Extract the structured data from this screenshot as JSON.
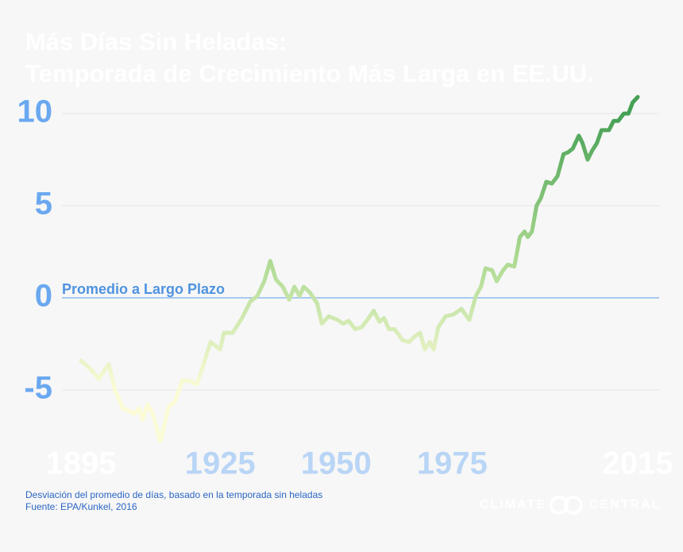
{
  "chart_data": {
    "type": "line",
    "title": [
      "Más Días Sin Heladas:",
      "Temporada de Crecimiento Más Larga en EE.UU."
    ],
    "annotation": "Promedio a Largo Plazo",
    "notes": [
      "Desviación del promedio de días, basado en la temporada sin heladas",
      "Fuente: EPA/Kunkel, 2016"
    ],
    "logo": [
      "CLIMATE",
      "CENTRAL"
    ],
    "x": [
      1895,
      1897.2,
      1898.8,
      1901,
      1902.3,
      1904,
      1905.2,
      1906.5,
      1907.5,
      1908.3,
      1909.3,
      1910.5,
      1912.1,
      1913.9,
      1915.3,
      1916.8,
      1918.5,
      1920,
      1921.3,
      1922.9,
      1925,
      1925.8,
      1927.7,
      1929.7,
      1931.5,
      1933,
      1934.5,
      1935.8,
      1937,
      1938.5,
      1939.9,
      1941,
      1942.1,
      1943,
      1944.3,
      1945.9,
      1946.9,
      1948.4,
      1950.3,
      1951.5,
      1952.7,
      1954.1,
      1955.5,
      1956.7,
      1958.1,
      1959.3,
      1960.3,
      1961.4,
      1962.6,
      1964.3,
      1965.7,
      1966.9,
      1968.1,
      1969.1,
      1970.2,
      1971,
      1972,
      1973.6,
      1975.3,
      1977,
      1978.7,
      1980.1,
      1981.2,
      1982.2,
      1983.6,
      1984.6,
      1986,
      1987,
      1988.4,
      1989.6,
      1990.6,
      1991.3,
      1992.2,
      1993.2,
      1994.1,
      1995.3,
      1996.5,
      1997.7,
      1999,
      2000,
      2001,
      2002.3,
      2003.1,
      2004.2,
      2005.2,
      2006.2,
      2007.2,
      2008.8,
      2009.8,
      2010.8,
      2012,
      2013,
      2013.9,
      2015
    ],
    "series": [
      {
        "values": [
          -3.4,
          -3.9,
          -4.4,
          -3.6,
          -5.0,
          -6.0,
          -6.1,
          -6.3,
          -6.0,
          -6.6,
          -5.8,
          -6.3,
          -7.8,
          -5.9,
          -5.6,
          -4.5,
          -4.5,
          -4.7,
          -3.7,
          -2.4,
          -2.8,
          -1.9,
          -1.9,
          -1.1,
          -0.2,
          0.1,
          0.9,
          2.0,
          1.0,
          0.6,
          -0.1,
          0.6,
          0.1,
          0.6,
          0.3,
          -0.3,
          -1.4,
          -1.0,
          -1.2,
          -1.4,
          -1.25,
          -1.7,
          -1.6,
          -1.2,
          -0.7,
          -1.3,
          -1.1,
          -1.7,
          -1.7,
          -2.3,
          -2.4,
          -2.1,
          -1.9,
          -2.8,
          -2.4,
          -2.8,
          -1.6,
          -1.0,
          -0.9,
          -0.6,
          -1.2,
          0.1,
          0.6,
          1.6,
          1.5,
          0.9,
          1.5,
          1.8,
          1.7,
          3.3,
          3.6,
          3.3,
          3.6,
          5.0,
          5.4,
          6.3,
          6.2,
          6.6,
          7.8,
          7.9,
          8.1,
          8.8,
          8.4,
          7.5,
          8.0,
          8.4,
          9.1,
          9.1,
          9.6,
          9.6,
          10.0,
          10.0,
          10.6,
          10.9
        ]
      }
    ],
    "gradient_colors": [
      "#fbfbd6",
      "#a8d88e",
      "#45a055"
    ],
    "xlim": [
      1895,
      2015
    ],
    "ylim": [
      -8.5,
      11.5
    ],
    "xticks": [
      1895,
      1925,
      1950,
      1975,
      2015
    ],
    "xtick_colors": [
      "#ffffff",
      "#b9d5f6",
      "#b9d5f6",
      "#b9d5f6",
      "#ffffff"
    ],
    "yticks": [
      -5,
      0,
      5,
      10
    ],
    "grid": true,
    "grid_color": "#e6e6e6",
    "zero_line_color": "#8fbaf0"
  }
}
